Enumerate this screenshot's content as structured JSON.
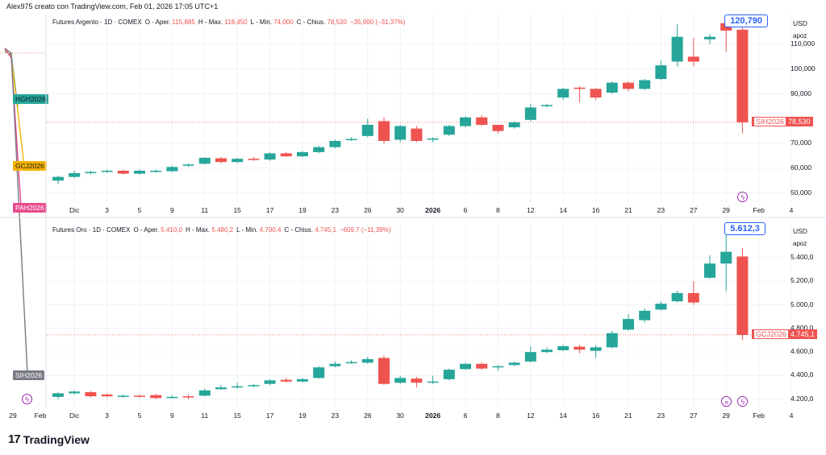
{
  "header": {
    "credit": "Alex975 creato con TradingView.com, Feb 01, 2026 17:05 UTC+1",
    "brand": "TradingView",
    "brand_logo": "17"
  },
  "colors": {
    "up": "#26a69a",
    "down": "#ef5350",
    "accent": "#2962ff",
    "event": "#9c27b0"
  },
  "side_panel": {
    "tags": [
      {
        "label": "HGH2026",
        "color": "#26a69a",
        "text_color": "#131722"
      },
      {
        "label": "GCJ2026",
        "color": "#f5b300",
        "text_color": "#131722"
      },
      {
        "label": "PAH2026",
        "color": "#e84a8c",
        "text_color": "#ffffff"
      },
      {
        "label": "SIH2026",
        "color": "#787b86",
        "text_color": "#ffffff"
      }
    ],
    "x_ticks": [
      "29",
      "Feb"
    ]
  },
  "chart_data": [
    {
      "type": "candlestick",
      "title": "Futures Argento · 1D · COMEX",
      "legend": {
        "open_label": "O - Aper.",
        "open": "115,885",
        "high_label": "H - Max.",
        "high": "118,450",
        "low_label": "L - Min.",
        "low": "74,000",
        "close_label": "C - Chius.",
        "close": "78,530",
        "change": "−35,900 (−31,37%)"
      },
      "unit": "USD",
      "unit_sub": "apoz",
      "ylim": [
        46000,
        122000
      ],
      "y_ticks": [
        {
          "value": 110000,
          "label": "110,000"
        },
        {
          "value": 100000,
          "label": "100,000"
        },
        {
          "value": 90000,
          "label": "90,000"
        },
        {
          "value": 70000,
          "label": "70,000"
        },
        {
          "value": 60000,
          "label": "60,000"
        },
        {
          "value": 50000,
          "label": "50,000"
        }
      ],
      "last_price": {
        "value": 78530,
        "label": "78,530",
        "symbol": "SIH2026"
      },
      "peak_callout": {
        "value": 120790,
        "label": "120,790",
        "index": 41
      },
      "x_ticks": [
        {
          "label": "Dic",
          "index": 1
        },
        {
          "label": "3",
          "index": 3
        },
        {
          "label": "5",
          "index": 5
        },
        {
          "label": "9",
          "index": 7
        },
        {
          "label": "11",
          "index": 9
        },
        {
          "label": "15",
          "index": 11
        },
        {
          "label": "17",
          "index": 13
        },
        {
          "label": "19",
          "index": 15
        },
        {
          "label": "23",
          "index": 17
        },
        {
          "label": "26",
          "index": 19
        },
        {
          "label": "30",
          "index": 21
        },
        {
          "label": "2026",
          "index": 23,
          "bold": true
        },
        {
          "label": "6",
          "index": 25
        },
        {
          "label": "8",
          "index": 27
        },
        {
          "label": "12",
          "index": 29
        },
        {
          "label": "14",
          "index": 31
        },
        {
          "label": "16",
          "index": 33
        },
        {
          "label": "21",
          "index": 35
        },
        {
          "label": "23",
          "index": 37
        },
        {
          "label": "27",
          "index": 39
        },
        {
          "label": "29",
          "index": 41
        },
        {
          "label": "Feb",
          "index": 43
        },
        {
          "label": "4",
          "index": 45
        }
      ],
      "events": [
        42
      ],
      "candles": [
        [
          55000,
          56500,
          53500,
          57000
        ],
        [
          56500,
          58000,
          56000,
          59000
        ],
        [
          58000,
          58500,
          57500,
          59000
        ],
        [
          58500,
          59000,
          58200,
          59500
        ],
        [
          59000,
          57800,
          57500,
          59300
        ],
        [
          57800,
          59000,
          57500,
          59500
        ],
        [
          58700,
          59000,
          58200,
          59500
        ],
        [
          58800,
          60500,
          58500,
          61000
        ],
        [
          61000,
          61500,
          60500,
          62000
        ],
        [
          61800,
          64200,
          61500,
          64500
        ],
        [
          64000,
          62500,
          62000,
          64500
        ],
        [
          62500,
          63800,
          62000,
          64300
        ],
        [
          63800,
          63500,
          63000,
          64500
        ],
        [
          63500,
          66000,
          63000,
          66500
        ],
        [
          66000,
          64800,
          64500,
          66500
        ],
        [
          64800,
          66500,
          64500,
          67000
        ],
        [
          66500,
          68500,
          66000,
          69000
        ],
        [
          68500,
          71000,
          68000,
          71500
        ],
        [
          71500,
          71800,
          71000,
          72500
        ],
        [
          73000,
          77500,
          72500,
          80000
        ],
        [
          79000,
          71000,
          70000,
          80500
        ],
        [
          71500,
          77000,
          70500,
          77500
        ],
        [
          76000,
          71000,
          70500,
          77000
        ],
        [
          71500,
          72000,
          70500,
          72500
        ],
        [
          73500,
          77000,
          73000,
          77500
        ],
        [
          77000,
          80500,
          76500,
          81000
        ],
        [
          80500,
          77500,
          77000,
          81500
        ],
        [
          77500,
          75000,
          74000,
          77500
        ],
        [
          76500,
          78500,
          76000,
          79000
        ],
        [
          79500,
          84500,
          79000,
          86000
        ],
        [
          85000,
          85500,
          84500,
          86000
        ],
        [
          88500,
          92000,
          87500,
          92500
        ],
        [
          92500,
          92000,
          86500,
          93000
        ],
        [
          92000,
          88500,
          87500,
          92500
        ],
        [
          90500,
          94500,
          90000,
          95000
        ],
        [
          94500,
          92000,
          91000,
          95000
        ],
        [
          92000,
          95500,
          91500,
          96000
        ],
        [
          96000,
          101500,
          95500,
          103500
        ],
        [
          103000,
          113000,
          101000,
          118000
        ],
        [
          105000,
          103000,
          101000,
          112500
        ],
        [
          112000,
          113000,
          110000,
          114000
        ],
        [
          118500,
          115500,
          107000,
          120790
        ],
        [
          115885,
          78530,
          74000,
          118450
        ]
      ]
    },
    {
      "type": "candlestick",
      "title": "Futures Oro · 1D · COMEX",
      "legend": {
        "open_label": "O - Aper.",
        "open": "5.410,0",
        "high_label": "H - Max.",
        "high": "5.480,2",
        "low_label": "L - Min.",
        "low": "4.700,4",
        "close_label": "C - Chius.",
        "close": "4.745,1",
        "change": "−609,7 (−11,39%)"
      },
      "unit": "USD",
      "unit_sub": "apoz",
      "ylim": [
        4130,
        5700
      ],
      "y_ticks": [
        {
          "value": 5400,
          "label": "5.400,0"
        },
        {
          "value": 5200,
          "label": "5.200,0"
        },
        {
          "value": 5000,
          "label": "5.000,0"
        },
        {
          "value": 4800,
          "label": "4.800,0"
        },
        {
          "value": 4600,
          "label": "4.600,0"
        },
        {
          "value": 4400,
          "label": "4.400,0"
        },
        {
          "value": 4200,
          "label": "4.200,0"
        }
      ],
      "last_price": {
        "value": 4745.1,
        "label": "4.745,1",
        "symbol": "GCJ2026"
      },
      "peak_callout": {
        "value": 5612.3,
        "label": "5.612,3",
        "index": 41
      },
      "x_ticks": [
        {
          "label": "Dic",
          "index": 1
        },
        {
          "label": "3",
          "index": 3
        },
        {
          "label": "5",
          "index": 5
        },
        {
          "label": "9",
          "index": 7
        },
        {
          "label": "11",
          "index": 9
        },
        {
          "label": "15",
          "index": 11
        },
        {
          "label": "17",
          "index": 13
        },
        {
          "label": "19",
          "index": 15
        },
        {
          "label": "23",
          "index": 17
        },
        {
          "label": "26",
          "index": 19
        },
        {
          "label": "30",
          "index": 21
        },
        {
          "label": "2026",
          "index": 23,
          "bold": true
        },
        {
          "label": "6",
          "index": 25
        },
        {
          "label": "8",
          "index": 27
        },
        {
          "label": "12",
          "index": 29
        },
        {
          "label": "14",
          "index": 31
        },
        {
          "label": "16",
          "index": 33
        },
        {
          "label": "21",
          "index": 35
        },
        {
          "label": "23",
          "index": 37
        },
        {
          "label": "27",
          "index": 39
        },
        {
          "label": "29",
          "index": 41
        },
        {
          "label": "Feb",
          "index": 43
        },
        {
          "label": "4",
          "index": 45
        }
      ],
      "events": [
        41,
        42
      ],
      "candles": [
        [
          4220,
          4250,
          4200,
          4260
        ],
        [
          4250,
          4265,
          4240,
          4275
        ],
        [
          4260,
          4225,
          4215,
          4270
        ],
        [
          4240,
          4225,
          4215,
          4250
        ],
        [
          4225,
          4230,
          4215,
          4240
        ],
        [
          4230,
          4225,
          4215,
          4240
        ],
        [
          4235,
          4210,
          4200,
          4245
        ],
        [
          4215,
          4220,
          4205,
          4235
        ],
        [
          4225,
          4220,
          4200,
          4240
        ],
        [
          4230,
          4275,
          4225,
          4290
        ],
        [
          4285,
          4300,
          4280,
          4320
        ],
        [
          4305,
          4310,
          4290,
          4340
        ],
        [
          4315,
          4320,
          4300,
          4330
        ],
        [
          4330,
          4360,
          4320,
          4370
        ],
        [
          4365,
          4350,
          4340,
          4380
        ],
        [
          4350,
          4370,
          4340,
          4380
        ],
        [
          4380,
          4470,
          4375,
          4480
        ],
        [
          4480,
          4500,
          4470,
          4520
        ],
        [
          4505,
          4515,
          4500,
          4530
        ],
        [
          4510,
          4540,
          4500,
          4560
        ],
        [
          4550,
          4330,
          4320,
          4570
        ],
        [
          4340,
          4380,
          4330,
          4400
        ],
        [
          4375,
          4340,
          4300,
          4390
        ],
        [
          4345,
          4350,
          4330,
          4400
        ],
        [
          4370,
          4450,
          4360,
          4460
        ],
        [
          4455,
          4500,
          4450,
          4510
        ],
        [
          4500,
          4460,
          4450,
          4510
        ],
        [
          4470,
          4480,
          4440,
          4490
        ],
        [
          4490,
          4510,
          4480,
          4520
        ],
        [
          4520,
          4600,
          4510,
          4650
        ],
        [
          4600,
          4620,
          4590,
          4640
        ],
        [
          4615,
          4650,
          4610,
          4660
        ],
        [
          4645,
          4620,
          4590,
          4660
        ],
        [
          4610,
          4640,
          4550,
          4660
        ],
        [
          4640,
          4760,
          4630,
          4780
        ],
        [
          4790,
          4880,
          4780,
          4920
        ],
        [
          4870,
          4950,
          4850,
          4970
        ],
        [
          4960,
          5010,
          4950,
          5030
        ],
        [
          5030,
          5100,
          5020,
          5120
        ],
        [
          5100,
          5020,
          5000,
          5200
        ],
        [
          5230,
          5350,
          5220,
          5420
        ],
        [
          5350,
          5450,
          5120,
          5612.3
        ],
        [
          5410,
          4745.1,
          4700.4,
          5480.2
        ]
      ]
    }
  ]
}
